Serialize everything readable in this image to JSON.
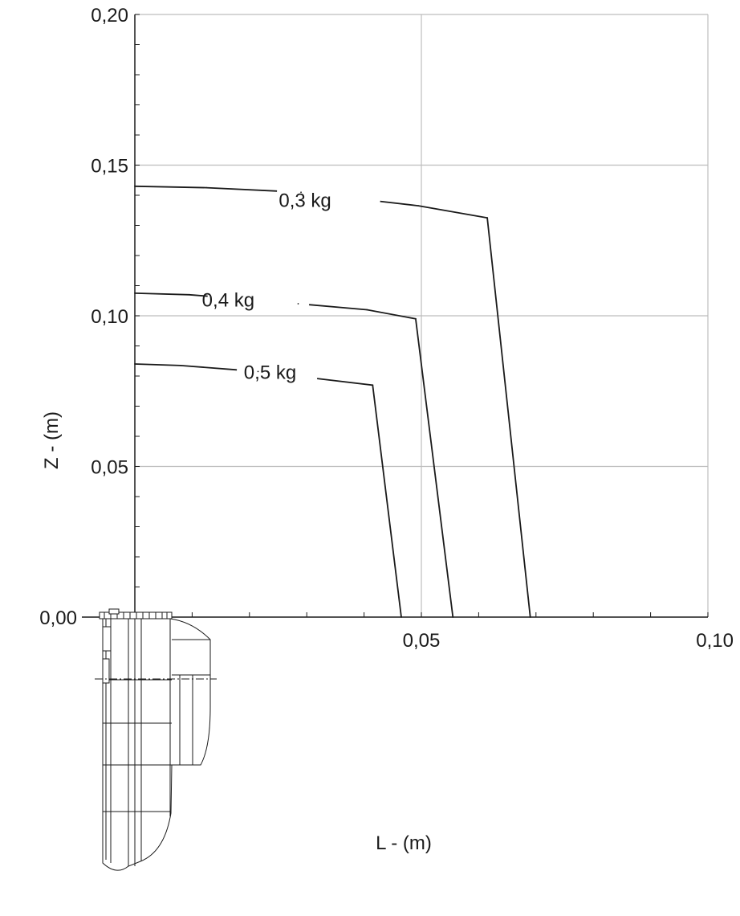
{
  "chart_data": {
    "type": "line",
    "title": "",
    "xlabel": "L - (m)",
    "ylabel": "Z - (m)",
    "xlim": [
      0,
      0.1
    ],
    "ylim": [
      0,
      0.2
    ],
    "x_ticks": [
      {
        "value": 0.0,
        "label": "0,00"
      },
      {
        "value": 0.05,
        "label": "0,05"
      },
      {
        "value": 0.1,
        "label": "0,10"
      }
    ],
    "y_ticks": [
      {
        "value": 0.0,
        "label": "0,00"
      },
      {
        "value": 0.05,
        "label": "0,05"
      },
      {
        "value": 0.1,
        "label": "0,10"
      },
      {
        "value": 0.15,
        "label": "0,15"
      },
      {
        "value": 0.2,
        "label": "0,20"
      }
    ],
    "x_minor_step": 0.01,
    "y_minor_step": 0.01,
    "grid": true,
    "grid_color": "#bdbdbd",
    "line_color": "#1a1a1a",
    "series": [
      {
        "name": "0,3 kg",
        "points": [
          {
            "x": 0.0,
            "y": 0.143
          },
          {
            "x": 0.0125,
            "y": 0.1425
          },
          {
            "x": 0.029,
            "y": 0.141
          },
          {
            "x": 0.0495,
            "y": 0.1365
          },
          {
            "x": 0.0615,
            "y": 0.1325
          },
          {
            "x": 0.069,
            "y": 0.0
          }
        ],
        "label_at": {
          "x": 0.0297,
          "y": 0.1385
        },
        "gap": [
          0.0248,
          0.0428
        ]
      },
      {
        "name": "0,4 kg",
        "points": [
          {
            "x": 0.0,
            "y": 0.1075
          },
          {
            "x": 0.0095,
            "y": 0.107
          },
          {
            "x": 0.0285,
            "y": 0.104
          },
          {
            "x": 0.0405,
            "y": 0.102
          },
          {
            "x": 0.049,
            "y": 0.099
          },
          {
            "x": 0.0555,
            "y": 0.0
          }
        ],
        "label_at": {
          "x": 0.0163,
          "y": 0.1055
        },
        "gap": [
          0.0127,
          0.0304
        ]
      },
      {
        "name": "0,5 kg",
        "points": [
          {
            "x": 0.0,
            "y": 0.084
          },
          {
            "x": 0.008,
            "y": 0.0835
          },
          {
            "x": 0.0215,
            "y": 0.0815
          },
          {
            "x": 0.0415,
            "y": 0.077
          },
          {
            "x": 0.0465,
            "y": 0.0
          }
        ],
        "label_at": {
          "x": 0.0236,
          "y": 0.0815
        },
        "gap": [
          0.0178,
          0.0318
        ]
      }
    ]
  }
}
